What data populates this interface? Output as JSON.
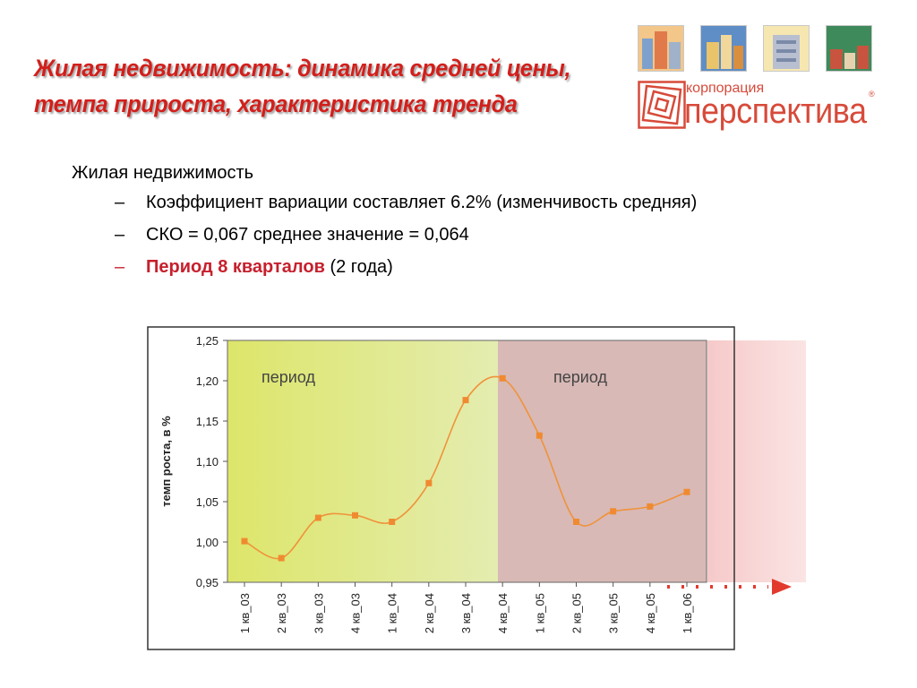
{
  "header": {
    "title_line1": "Жилая недвижимость: динамика средней цены,",
    "title_line2": "темпа прироста, характеристика тренда"
  },
  "logo": {
    "label": "корпорация",
    "name": "перспектива",
    "reg": "®"
  },
  "content": {
    "heading": "Жилая недвижимость",
    "bullets": [
      {
        "dash": "–",
        "text": "Коэффициент вариации составляет 6.2% (изменчивость средняя)"
      },
      {
        "dash": "–",
        "text": "СКО = 0,067 среднее значение = 0,064"
      },
      {
        "dash": "–",
        "emph": "Период 8 кварталов",
        "rest": " (2 года)"
      }
    ]
  },
  "colors": {
    "title": "#d21f1b",
    "accent": "#c6202d",
    "series": "#f0923a",
    "period1": "#dde87a",
    "period2": "#d7b7b4"
  },
  "chart_data": {
    "type": "line",
    "ylabel": "темп роста, в %",
    "xlabel": "",
    "ylim": [
      0.95,
      1.25
    ],
    "yticks": [
      "0,95",
      "1,00",
      "1,05",
      "1,10",
      "1,15",
      "1,20",
      "1,25"
    ],
    "categories": [
      "1 кв_03",
      "2 кв_03",
      "3 кв_03",
      "4 кв_03",
      "1 кв_04",
      "2 кв_04",
      "3 кв_04",
      "4 кв_04",
      "1 кв_05",
      "2 кв_05",
      "3 кв_05",
      "4 кв_05",
      "1 кв_06"
    ],
    "series": [
      {
        "values": [
          1.001,
          0.98,
          1.03,
          1.033,
          1.025,
          1.073,
          1.176,
          1.203,
          1.132,
          1.025,
          1.038,
          1.044,
          1.062
        ]
      }
    ],
    "annotations": [
      {
        "text": "период",
        "region": "1 кв_03 – 4 кв_04"
      },
      {
        "text": "период",
        "region": "4 кв_04 – 1 кв_06"
      }
    ],
    "grid": false
  }
}
